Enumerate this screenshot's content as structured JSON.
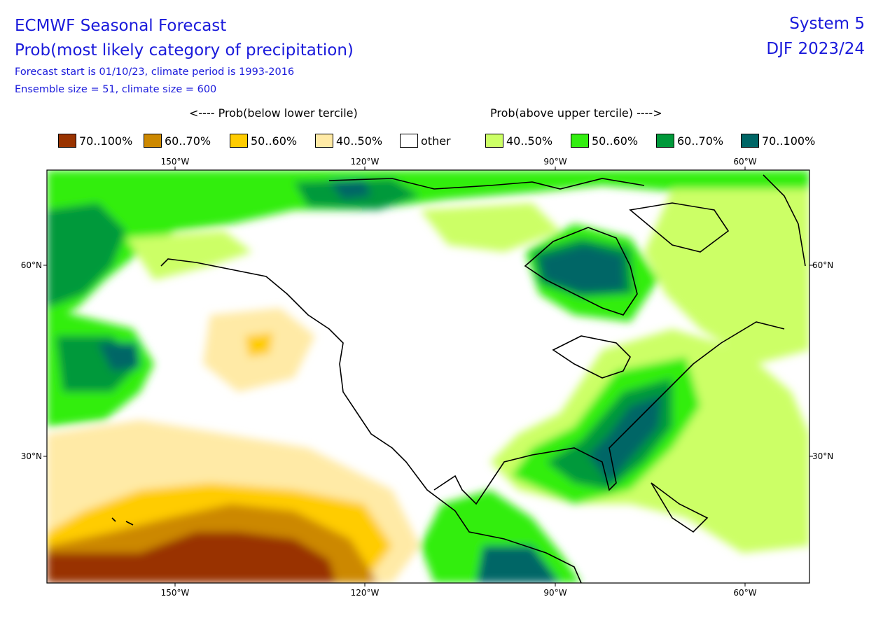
{
  "header": {
    "title": "ECMWF Seasonal Forecast",
    "subtitle": "Prob(most likely category of precipitation)",
    "forecast_info": "Forecast start is 01/10/23, climate period is 1993-2016",
    "ensemble_info": "Ensemble size = 51, climate size = 600",
    "system": "System 5",
    "season": "DJF 2023/24"
  },
  "legend": {
    "below_label": "<---- Prob(below lower tercile)",
    "above_label": "Prob(above upper tercile) ---->",
    "items": [
      {
        "label": "70..100%",
        "color": "#993300"
      },
      {
        "label": "60..70%",
        "color": "#cc8800"
      },
      {
        "label": "50..60%",
        "color": "#ffcc00"
      },
      {
        "label": "40..50%",
        "color": "#ffeaa6"
      },
      {
        "label": "other",
        "color": "#ffffff"
      },
      {
        "label": "40..50%",
        "color": "#ccff66"
      },
      {
        "label": "50..60%",
        "color": "#33ee11"
      },
      {
        "label": "60..70%",
        "color": "#00993a"
      },
      {
        "label": "70..100%",
        "color": "#006666"
      }
    ]
  },
  "axes": {
    "top_lon": [
      "150°W",
      "120°W",
      "90°W",
      "60°W"
    ],
    "bottom_lon": [
      "150°W",
      "120°W",
      "90°W",
      "60°W"
    ],
    "left_lat": [
      "60°N",
      "30°N"
    ],
    "right_lat": [
      "60°N",
      "30°N"
    ]
  }
}
